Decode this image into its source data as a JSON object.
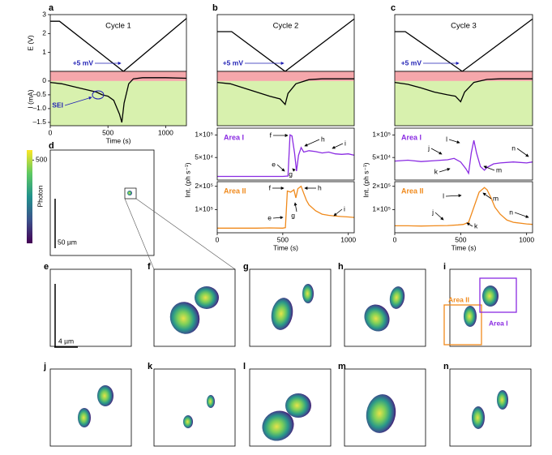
{
  "panel_labels": [
    "a",
    "b",
    "c",
    "d",
    "e",
    "f",
    "g",
    "h",
    "i",
    "j",
    "k",
    "l",
    "m",
    "n"
  ],
  "scale_bars": [
    "50 µm",
    "4 µm"
  ],
  "region_labels": [
    "Area II",
    "Area I"
  ],
  "chart_data": [
    {
      "type": "line",
      "title": "Cycle 1",
      "y_label": "E (V)",
      "xlim": [
        0,
        1180
      ],
      "ylim": [
        0,
        3
      ],
      "yticks": [
        1,
        2,
        3
      ],
      "x": [
        0,
        80,
        634,
        1180
      ],
      "series": [
        {
          "color": "#000000",
          "values": [
            2.65,
            2.65,
            0,
            2.8
          ]
        }
      ],
      "annotations": [
        "+5 mV"
      ],
      "annotation_color": "#1f1fb4"
    },
    {
      "type": "line",
      "y_label": "I (mA)",
      "x_label": "Time (s)",
      "xlim": [
        0,
        1180
      ],
      "ylim": [
        -1.62,
        0.35
      ],
      "yticks": [
        0,
        {
          "value": -0.5,
          "label": "–0.5"
        },
        {
          "value": -1,
          "label": "–1.0"
        },
        {
          "value": -1.5,
          "label": "–1.5"
        }
      ],
      "xticks": [
        0,
        500,
        1000
      ],
      "sign_shading": true,
      "x": [
        0,
        100,
        200,
        300,
        400,
        450,
        500,
        550,
        600,
        620,
        640,
        680,
        720,
        800,
        900,
        1000,
        1180
      ],
      "series": [
        {
          "color": "#000000",
          "values": [
            -0.05,
            -0.1,
            -0.2,
            -0.3,
            -0.4,
            -0.5,
            -0.55,
            -0.7,
            -1.2,
            -1.5,
            -0.8,
            -0.1,
            0.08,
            0.12,
            0.12,
            0.12,
            0.1
          ]
        }
      ],
      "annotations": [
        "SEI"
      ],
      "annotation_color": "#1f1fb4"
    },
    {
      "type": "line",
      "title": "Cycle 2",
      "xlim": [
        0,
        1045
      ],
      "ylim": [
        0,
        3
      ],
      "x": [
        0,
        110,
        518,
        1045
      ],
      "series": [
        {
          "color": "#000000",
          "values": [
            2.1,
            2.1,
            0,
            2.77
          ]
        }
      ],
      "annotations": [
        "+5 mV"
      ],
      "annotation_color": "#1f1fb4"
    },
    {
      "type": "line",
      "xlim": [
        0,
        1045
      ],
      "ylim": [
        -1.62,
        0.35
      ],
      "sign_shading": true,
      "x": [
        0,
        100,
        200,
        300,
        400,
        480,
        518,
        540,
        600,
        700,
        800,
        1045
      ],
      "series": [
        {
          "color": "#000000",
          "values": [
            -0.05,
            -0.1,
            -0.25,
            -0.4,
            -0.55,
            -0.65,
            -0.85,
            -0.45,
            -0.1,
            0.05,
            0.08,
            0.08
          ]
        }
      ]
    },
    {
      "type": "line",
      "y_label": "Int. (ph s⁻¹)",
      "xlim": [
        0,
        1045
      ],
      "ylim": [
        0,
        115000
      ],
      "yticks": [
        {
          "value": 50000,
          "label": "5×10⁴"
        },
        {
          "value": 100000,
          "label": "1×10⁵"
        }
      ],
      "x": [
        0,
        100,
        200,
        300,
        400,
        500,
        540,
        555,
        570,
        590,
        605,
        620,
        640,
        660,
        700,
        750,
        800,
        850,
        900,
        950,
        1000,
        1045
      ],
      "series": [
        {
          "name": "Area I",
          "color": "#8a2be2",
          "values": [
            8000,
            8000,
            8000,
            8000,
            8000,
            8000,
            9000,
            100000,
            98000,
            60000,
            20000,
            55000,
            72000,
            62000,
            65000,
            63000,
            60000,
            62000,
            58000,
            57000,
            58000,
            55000
          ]
        }
      ],
      "annotations": [
        "e",
        "f",
        "g",
        "h",
        "i"
      ],
      "annotation_color": "#000000"
    },
    {
      "type": "line",
      "x_label": "Time (s)",
      "xlim": [
        0,
        1045
      ],
      "ylim": [
        0,
        220000
      ],
      "yticks": [
        {
          "value": 100000,
          "label": "1×10⁵"
        },
        {
          "value": 200000,
          "label": "2×10⁵"
        }
      ],
      "xticks": [
        0,
        500,
        1000
      ],
      "x": [
        0,
        100,
        200,
        300,
        400,
        500,
        520,
        535,
        560,
        585,
        600,
        615,
        640,
        660,
        680,
        700,
        750,
        800,
        850,
        900,
        950,
        1000,
        1045
      ],
      "series": [
        {
          "name": "Area II",
          "color": "#f08a1c",
          "values": [
            20000,
            20000,
            20000,
            20000,
            21000,
            20000,
            22000,
            180000,
            175000,
            185000,
            150000,
            190000,
            200000,
            170000,
            140000,
            120000,
            95000,
            80000,
            75000,
            72000,
            70000,
            68000,
            66000
          ]
        }
      ],
      "annotations": [
        "e",
        "f",
        "g",
        "h",
        "i"
      ],
      "annotation_color": "#000000"
    },
    {
      "type": "line",
      "title": "Cycle 3",
      "xlim": [
        0,
        1045
      ],
      "ylim": [
        0,
        3
      ],
      "x": [
        0,
        80,
        512,
        1045
      ],
      "series": [
        {
          "color": "#000000",
          "values": [
            2.1,
            2.1,
            0,
            2.77
          ]
        }
      ],
      "annotations": [
        "+5 mV"
      ],
      "annotation_color": "#1f1fb4"
    },
    {
      "type": "line",
      "xlim": [
        0,
        1045
      ],
      "ylim": [
        -1.62,
        0.35
      ],
      "sign_shading": true,
      "x": [
        0,
        100,
        200,
        300,
        400,
        460,
        500,
        530,
        600,
        700,
        800,
        1045
      ],
      "series": [
        {
          "color": "#000000",
          "values": [
            -0.05,
            -0.12,
            -0.25,
            -0.4,
            -0.5,
            -0.55,
            -0.75,
            -0.4,
            -0.05,
            0.06,
            0.08,
            0.08
          ]
        }
      ]
    },
    {
      "type": "line",
      "y_label": "Int. (ph s⁻¹)",
      "xlim": [
        0,
        1045
      ],
      "ylim": [
        0,
        115000
      ],
      "yticks": [
        {
          "value": 50000,
          "label": "5×10⁴"
        },
        {
          "value": 100000,
          "label": "1×10⁵"
        }
      ],
      "x": [
        0,
        100,
        200,
        300,
        400,
        450,
        500,
        540,
        560,
        580,
        600,
        620,
        650,
        680,
        700,
        750,
        800,
        900,
        1000,
        1045
      ],
      "series": [
        {
          "name": "Area I",
          "color": "#8a2be2",
          "values": [
            42000,
            44000,
            41000,
            43000,
            45000,
            48000,
            40000,
            25000,
            15000,
            60000,
            88000,
            60000,
            30000,
            22000,
            28000,
            36000,
            38000,
            40000,
            38000,
            40000
          ]
        }
      ],
      "annotations": [
        "j",
        "k",
        "l",
        "m",
        "n"
      ],
      "annotation_color": "#000000"
    },
    {
      "type": "line",
      "x_label": "Time (s)",
      "xlim": [
        0,
        1045
      ],
      "ylim": [
        0,
        220000
      ],
      "yticks": [
        {
          "value": 100000,
          "label": "1×10⁵"
        },
        {
          "value": 200000,
          "label": "2×10⁵"
        }
      ],
      "xticks": [
        0,
        500,
        1000
      ],
      "x": [
        0,
        100,
        200,
        300,
        400,
        480,
        520,
        560,
        600,
        640,
        680,
        700,
        730,
        760,
        800,
        850,
        900,
        1000,
        1045
      ],
      "series": [
        {
          "name": "Area II",
          "color": "#f08a1c",
          "values": [
            30000,
            30000,
            29000,
            30000,
            31000,
            34000,
            36000,
            45000,
            110000,
            175000,
            195000,
            185000,
            150000,
            110000,
            80000,
            55000,
            45000,
            38000,
            36000
          ]
        }
      ],
      "annotations": [
        "j",
        "k",
        "l",
        "m",
        "n"
      ],
      "annotation_color": "#000000"
    },
    {
      "type": "colorbar",
      "label": "Photon",
      "lim": [
        0,
        560
      ],
      "ticks": [
        500
      ]
    }
  ]
}
